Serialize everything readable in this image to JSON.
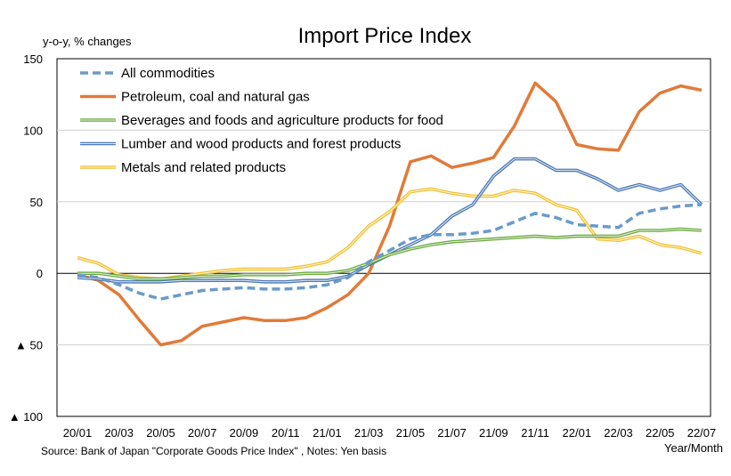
{
  "chart_data": {
    "type": "line",
    "title": "Import Price Index",
    "ylabel": "y-o-y, % changes",
    "xlabel": "Year/Month",
    "source_note": "Source: Bank of Japan \"Corporate Goods Price Index\" , Notes: Yen basis",
    "ylim": [
      -100,
      150
    ],
    "y_ticks": [
      150,
      100,
      50,
      0,
      -50,
      -100
    ],
    "y_tick_labels": [
      "150",
      "100",
      "50",
      "0",
      "▲ 50",
      "▲ 100"
    ],
    "x_tick_labels": [
      "20/01",
      "20/03",
      "20/05",
      "20/07",
      "20/09",
      "20/11",
      "21/01",
      "21/03",
      "21/05",
      "21/07",
      "21/09",
      "21/11",
      "22/01",
      "22/03",
      "22/05",
      "22/07"
    ],
    "grid": true,
    "legend_position": "top-left",
    "x": [
      "20/01",
      "20/02",
      "20/03",
      "20/04",
      "20/05",
      "20/06",
      "20/07",
      "20/08",
      "20/09",
      "20/10",
      "20/11",
      "20/12",
      "21/01",
      "21/02",
      "21/03",
      "21/04",
      "21/05",
      "21/06",
      "21/07",
      "21/08",
      "21/09",
      "21/10",
      "21/11",
      "21/12",
      "22/01",
      "22/02",
      "22/03",
      "22/04",
      "22/05",
      "22/06",
      "22/07"
    ],
    "series": [
      {
        "name": "All commodities",
        "color": "#6a9bc9",
        "style": "dashed",
        "values": [
          -1,
          -3,
          -8,
          -14,
          -18,
          -15,
          -12,
          -11,
          -10,
          -11,
          -11,
          -10,
          -8,
          -3,
          8,
          16,
          24,
          27,
          27,
          28,
          30,
          36,
          42,
          39,
          34,
          33,
          32,
          42,
          45,
          47,
          48
        ]
      },
      {
        "name": "Petroleum, coal and natural gas",
        "color": "#e07b39",
        "style": "solid",
        "values": [
          -1,
          -5,
          -15,
          -33,
          -50,
          -47,
          -37,
          -34,
          -31,
          -33,
          -33,
          -31,
          -24,
          -15,
          0,
          33,
          78,
          82,
          74,
          77,
          81,
          103,
          133,
          120,
          90,
          87,
          86,
          113,
          126,
          131,
          128
        ]
      },
      {
        "name": "Beverages and foods and agriculture products for food",
        "color": "#6aaa3f",
        "style": "double",
        "values": [
          0,
          0,
          -2,
          -4,
          -4,
          -3,
          -2,
          -2,
          -1,
          -1,
          -1,
          0,
          0,
          2,
          7,
          13,
          17,
          20,
          22,
          23,
          24,
          25,
          26,
          25,
          26,
          26,
          26,
          30,
          30,
          31,
          30
        ]
      },
      {
        "name": "Lumber and wood products and forest products",
        "color": "#4a78b4",
        "style": "double",
        "values": [
          -3,
          -4,
          -6,
          -6,
          -6,
          -5,
          -5,
          -5,
          -5,
          -6,
          -6,
          -5,
          -5,
          -2,
          6,
          13,
          20,
          27,
          40,
          48,
          68,
          80,
          80,
          72,
          72,
          66,
          58,
          62,
          58,
          62,
          48
        ]
      },
      {
        "name": "Metals and related products",
        "color": "#f2c12e",
        "style": "double",
        "values": [
          11,
          7,
          -1,
          -3,
          -4,
          -2,
          0,
          2,
          3,
          3,
          3,
          5,
          8,
          18,
          33,
          43,
          57,
          59,
          56,
          54,
          54,
          58,
          56,
          48,
          44,
          24,
          23,
          26,
          20,
          18,
          14
        ]
      }
    ]
  }
}
